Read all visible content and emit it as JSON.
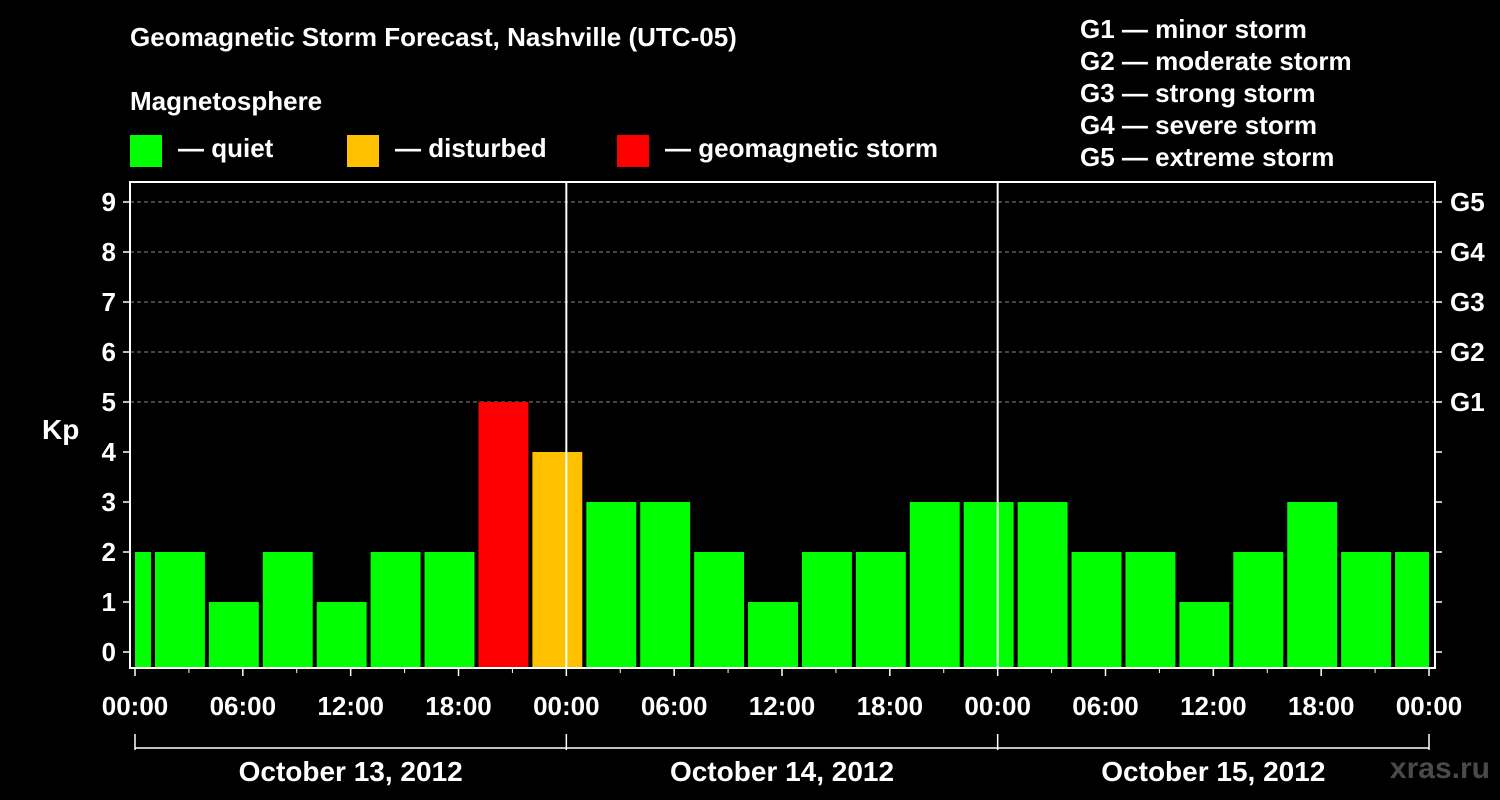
{
  "title": "Geomagnetic Storm Forecast, Nashville (UTC-05)",
  "legend": {
    "title": "Magnetosphere",
    "items": [
      {
        "label": "— quiet",
        "color": "#00ff00"
      },
      {
        "label": "— disturbed",
        "color": "#ffc000"
      },
      {
        "label": "— geomagnetic storm",
        "color": "#ff0000"
      }
    ]
  },
  "g_scale": [
    "G1 — minor storm",
    "G2 — moderate storm",
    "G3 — strong storm",
    "G4 — severe storm",
    "G5 — extreme storm"
  ],
  "watermark": "xras.ru",
  "chart_data": {
    "type": "bar",
    "ylabel": "Kp",
    "ylim": [
      0,
      9
    ],
    "y_ticks": [
      "0",
      "1",
      "2",
      "3",
      "4",
      "5",
      "6",
      "7",
      "8",
      "9"
    ],
    "right_ticks": [
      {
        "kp": 5,
        "label": "G1"
      },
      {
        "kp": 6,
        "label": "G2"
      },
      {
        "kp": 7,
        "label": "G3"
      },
      {
        "kp": 8,
        "label": "G4"
      },
      {
        "kp": 9,
        "label": "G5"
      }
    ],
    "grid": "dashed horizontal at Kp 5-9",
    "x_range_hours": [
      0,
      72
    ],
    "x_tick_labels": [
      "00:00",
      "06:00",
      "12:00",
      "18:00",
      "00:00",
      "06:00",
      "12:00",
      "18:00",
      "00:00",
      "06:00",
      "12:00",
      "18:00",
      "00:00"
    ],
    "days": [
      "October 13, 2012",
      "October 14, 2012",
      "October 15, 2012"
    ],
    "colors": {
      "quiet": "#00ff00",
      "disturbed": "#ffc000",
      "storm": "#ff0000"
    },
    "bars": [
      {
        "start": 0,
        "end": 1,
        "kp": 2
      },
      {
        "start": 1,
        "end": 4,
        "kp": 2
      },
      {
        "start": 4,
        "end": 7,
        "kp": 1
      },
      {
        "start": 7,
        "end": 10,
        "kp": 2
      },
      {
        "start": 10,
        "end": 13,
        "kp": 1
      },
      {
        "start": 13,
        "end": 16,
        "kp": 2
      },
      {
        "start": 16,
        "end": 19,
        "kp": 2
      },
      {
        "start": 19,
        "end": 22,
        "kp": 5
      },
      {
        "start": 22,
        "end": 25,
        "kp": 4
      },
      {
        "start": 25,
        "end": 28,
        "kp": 3
      },
      {
        "start": 28,
        "end": 31,
        "kp": 3
      },
      {
        "start": 31,
        "end": 34,
        "kp": 2
      },
      {
        "start": 34,
        "end": 37,
        "kp": 1
      },
      {
        "start": 37,
        "end": 40,
        "kp": 2
      },
      {
        "start": 40,
        "end": 43,
        "kp": 2
      },
      {
        "start": 43,
        "end": 46,
        "kp": 3
      },
      {
        "start": 46,
        "end": 49,
        "kp": 3
      },
      {
        "start": 49,
        "end": 52,
        "kp": 3
      },
      {
        "start": 52,
        "end": 55,
        "kp": 2
      },
      {
        "start": 55,
        "end": 58,
        "kp": 2
      },
      {
        "start": 58,
        "end": 61,
        "kp": 1
      },
      {
        "start": 61,
        "end": 64,
        "kp": 2
      },
      {
        "start": 64,
        "end": 67,
        "kp": 3
      },
      {
        "start": 67,
        "end": 70,
        "kp": 2
      },
      {
        "start": 70,
        "end": 72,
        "kp": 2
      }
    ]
  }
}
